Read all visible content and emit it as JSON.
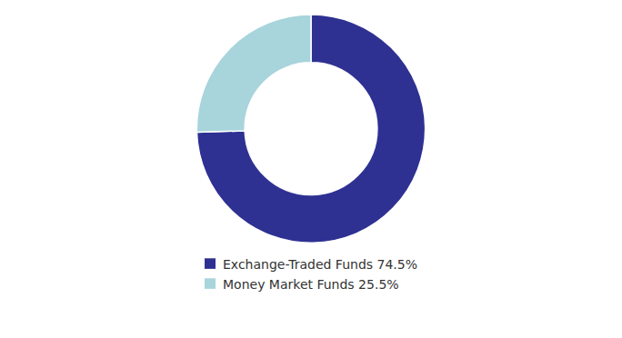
{
  "chart_data": {
    "type": "donut",
    "categories": [
      "Exchange-Traded Funds 74.5%",
      "Money Market Funds 25.5%"
    ],
    "values": [
      74.5,
      25.5
    ],
    "colors": [
      "#2e3192",
      "#a8d4dc"
    ],
    "legend": "bottom"
  }
}
